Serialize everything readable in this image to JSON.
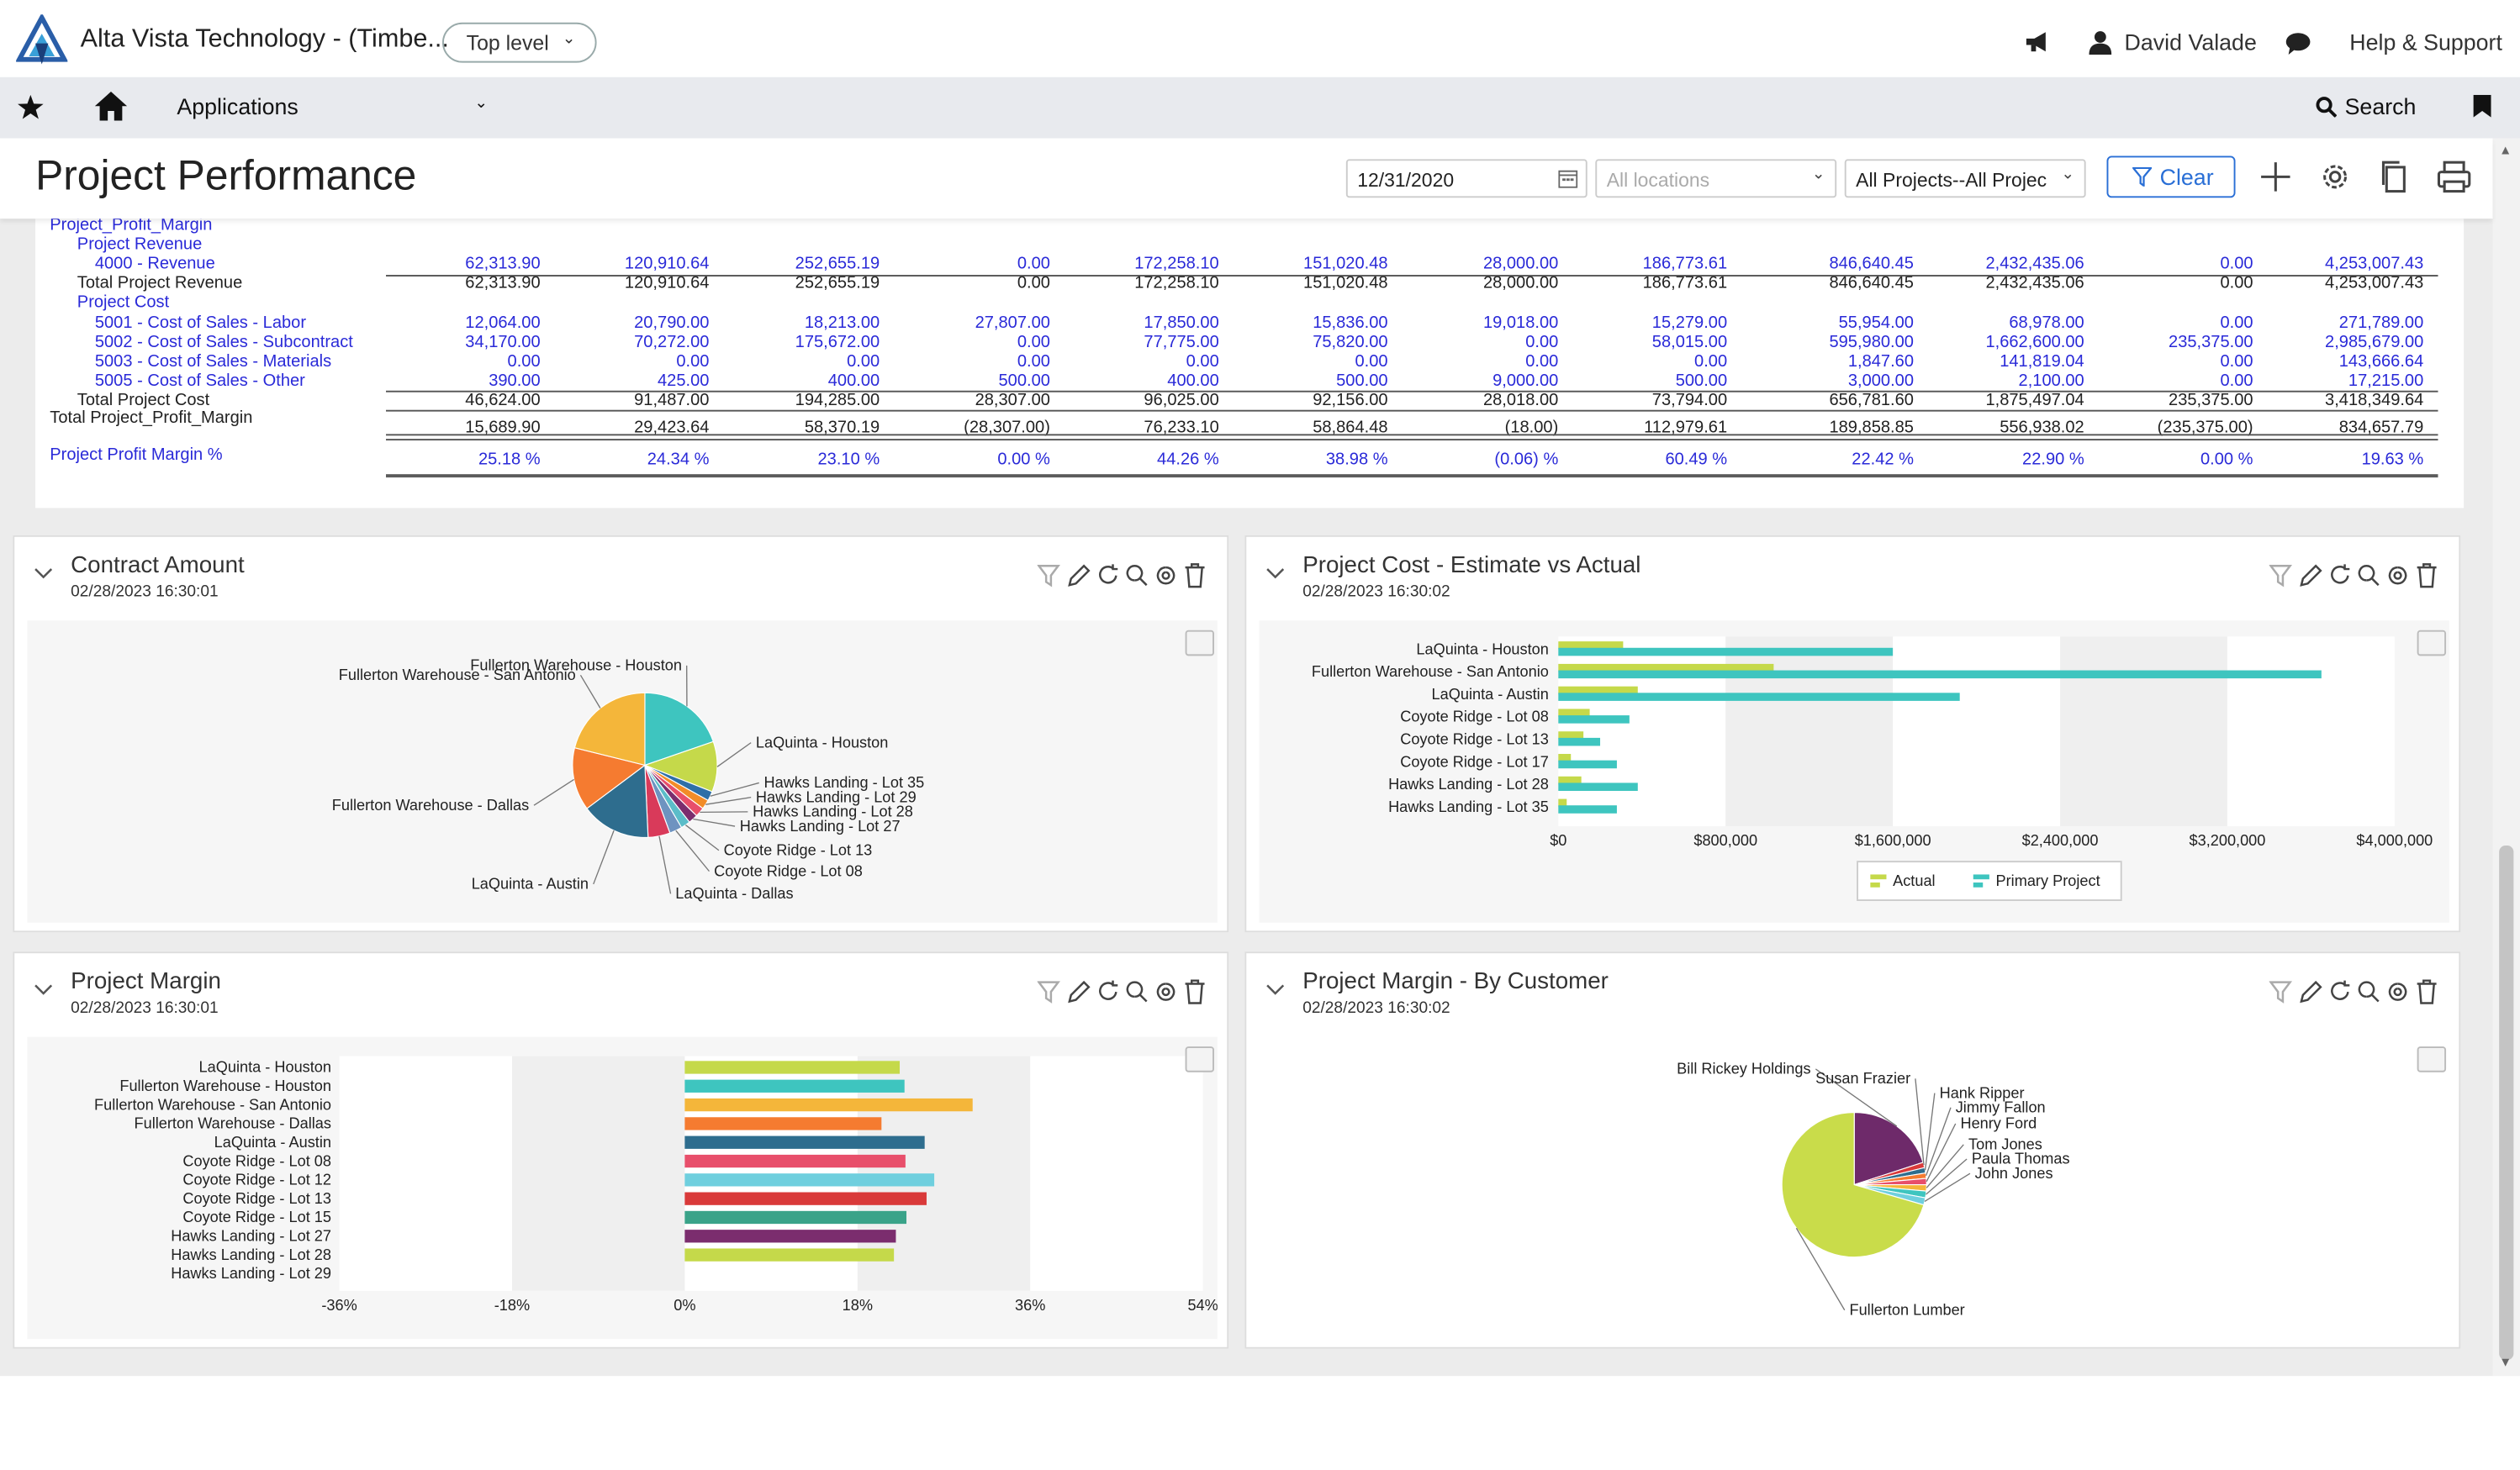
{
  "app": {
    "title": "Alta Vista Technology - (Timbe...",
    "level": "Top level",
    "user": "David Valade",
    "help": "Help & Support"
  },
  "nav": {
    "applications": "Applications",
    "search": "Search"
  },
  "page": {
    "title": "Project Performance",
    "date": "12/31/2020",
    "locations_placeholder": "All locations",
    "projects": "All Projects--All Projec",
    "clear": "Clear"
  },
  "report": {
    "sections": [
      {
        "label": "Project_Profit_Margin",
        "style": "blue",
        "indent": 0
      },
      {
        "label": "Project Revenue",
        "style": "blue",
        "indent": 1
      }
    ],
    "rows": [
      {
        "label": "4000 - Revenue",
        "style": "blue",
        "indent": 2,
        "values": [
          "62,313.90",
          "120,910.64",
          "252,655.19",
          "0.00",
          "172,258.10",
          "151,020.48",
          "28,000.00",
          "186,773.61",
          "846,640.45",
          "2,432,435.06",
          "0.00",
          "4,253,007.43"
        ]
      },
      {
        "label": "Total Project Revenue",
        "style": "black",
        "indent": 1,
        "values": [
          "62,313.90",
          "120,910.64",
          "252,655.19",
          "0.00",
          "172,258.10",
          "151,020.48",
          "28,000.00",
          "186,773.61",
          "846,640.45",
          "2,432,435.06",
          "0.00",
          "4,253,007.43"
        ]
      },
      {
        "label": "Project Cost",
        "style": "blue",
        "indent": 1,
        "values": []
      },
      {
        "label": "5001 - Cost of Sales - Labor",
        "style": "blue",
        "indent": 2,
        "values": [
          "12,064.00",
          "20,790.00",
          "18,213.00",
          "27,807.00",
          "17,850.00",
          "15,836.00",
          "19,018.00",
          "15,279.00",
          "55,954.00",
          "68,978.00",
          "0.00",
          "271,789.00"
        ]
      },
      {
        "label": "5002 - Cost of Sales - Subcontract",
        "style": "blue",
        "indent": 2,
        "values": [
          "34,170.00",
          "70,272.00",
          "175,672.00",
          "0.00",
          "77,775.00",
          "75,820.00",
          "0.00",
          "58,015.00",
          "595,980.00",
          "1,662,600.00",
          "235,375.00",
          "2,985,679.00"
        ]
      },
      {
        "label": "5003 - Cost of Sales - Materials",
        "style": "blue",
        "indent": 2,
        "values": [
          "0.00",
          "0.00",
          "0.00",
          "0.00",
          "0.00",
          "0.00",
          "0.00",
          "0.00",
          "1,847.60",
          "141,819.04",
          "0.00",
          "143,666.64"
        ]
      },
      {
        "label": "5005 - Cost of Sales - Other",
        "style": "blue",
        "indent": 2,
        "values": [
          "390.00",
          "425.00",
          "400.00",
          "500.00",
          "400.00",
          "500.00",
          "9,000.00",
          "500.00",
          "3,000.00",
          "2,100.00",
          "0.00",
          "17,215.00"
        ]
      },
      {
        "label": "Total Project Cost",
        "style": "black",
        "indent": 1,
        "values": [
          "46,624.00",
          "91,487.00",
          "194,285.00",
          "28,307.00",
          "96,025.00",
          "92,156.00",
          "28,018.00",
          "73,794.00",
          "656,781.60",
          "1,875,497.04",
          "235,375.00",
          "3,418,349.64"
        ]
      },
      {
        "label": "Total Project_Profit_Margin",
        "style": "black",
        "indent": 0,
        "values": [
          "15,689.90",
          "29,423.64",
          "58,370.19",
          "(28,307.00)",
          "76,233.10",
          "58,864.48",
          "(18.00)",
          "112,979.61",
          "189,858.85",
          "556,938.02",
          "(235,375.00)",
          "834,657.79"
        ]
      },
      {
        "label": "Project Profit Margin %",
        "style": "blue",
        "indent": 0,
        "values": [
          "25.18 %",
          "24.34 %",
          "23.10 %",
          "0.00 %",
          "44.26 %",
          "38.98 %",
          "(0.06) %",
          "60.49 %",
          "22.42 %",
          "22.90 %",
          "0.00 %",
          "19.63 %"
        ]
      }
    ]
  },
  "panels": {
    "contract": {
      "title": "Contract Amount",
      "date": "02/28/2023 16:30:01"
    },
    "cost": {
      "title": "Project Cost - Estimate vs Actual",
      "date": "02/28/2023 16:30:02"
    },
    "margin": {
      "title": "Project Margin",
      "date": "02/28/2023 16:30:01"
    },
    "customer": {
      "title": "Project Margin - By Customer",
      "date": "02/28/2023 16:30:02"
    }
  },
  "chart_data": [
    {
      "type": "pie",
      "labels": [
        "Fullerton Warehouse - Houston",
        "LaQuinta - Houston",
        "Hawks Landing - Lot 35",
        "Hawks Landing - Lot 29",
        "Hawks Landing - Lot 28",
        "Hawks Landing - Lot 27",
        "Coyote Ridge - Lot 13",
        "Coyote Ridge - Lot 08",
        "LaQuinta - Dallas",
        "LaQuinta - Austin",
        "Fullerton Warehouse - Dallas",
        "Fullerton Warehouse - San Antonio"
      ],
      "values": [
        14,
        8,
        1.5,
        1.5,
        1.5,
        1.5,
        1.5,
        2,
        3.5,
        11,
        10,
        15
      ],
      "colors": [
        "#3ec5bf",
        "#c5d94a",
        "#2e6fa8",
        "#f28c28",
        "#e84f6b",
        "#7b2d6e",
        "#5bbdc9",
        "#6e93c0",
        "#d93a5a",
        "#2e6d8e",
        "#f57b30",
        "#f4b63a"
      ]
    },
    {
      "type": "bar",
      "orientation": "horizontal",
      "categories": [
        "LaQuinta - Houston",
        "Fullerton Warehouse - San Antonio",
        "LaQuinta - Austin",
        "Coyote Ridge - Lot 08",
        "Coyote Ridge - Lot 13",
        "Coyote Ridge - Lot 17",
        "Hawks Landing - Lot 28",
        "Hawks Landing - Lot 35"
      ],
      "series": [
        {
          "name": "Actual",
          "color": "#c5d94a",
          "values": [
            310000,
            1030000,
            380000,
            150000,
            120000,
            60000,
            110000,
            40000
          ]
        },
        {
          "name": "Primary Project",
          "color": "#3ec5bf",
          "values": [
            1600000,
            3650000,
            1920000,
            340000,
            200000,
            280000,
            380000,
            280000
          ]
        }
      ],
      "xticks": [
        "$0",
        "$800,000",
        "$1,600,000",
        "$2,400,000",
        "$3,200,000",
        "$4,000,000"
      ],
      "xlim": [
        0,
        4000000
      ]
    },
    {
      "type": "bar",
      "orientation": "horizontal",
      "categories": [
        "LaQuinta - Houston",
        "Fullerton Warehouse - Houston",
        "Fullerton Warehouse - San Antonio",
        "Fullerton Warehouse - Dallas",
        "LaQuinta - Austin",
        "Coyote Ridge - Lot 08",
        "Coyote Ridge - Lot 12",
        "Coyote Ridge - Lot 13",
        "Coyote Ridge - Lot 15",
        "Hawks Landing - Lot 27",
        "Hawks Landing - Lot 28",
        "Hawks Landing - Lot 29"
      ],
      "values": [
        22.4,
        22.9,
        30.0,
        20.5,
        25.0,
        23.0,
        26.0,
        25.2,
        23.1,
        22.0,
        21.8,
        0
      ],
      "colors": [
        "#c5d94a",
        "#3ec5bf",
        "#f4b63a",
        "#f57b30",
        "#2e6d8e",
        "#e84f6b",
        "#6fcfde",
        "#d93a3a",
        "#3aa389",
        "#7b2d6e",
        "#c5d94a",
        "#c5d94a"
      ],
      "xticks": [
        "-36%",
        "-18%",
        "0%",
        "18%",
        "36%",
        "54%"
      ],
      "xlim": [
        -36,
        54
      ]
    },
    {
      "type": "pie",
      "labels": [
        "Bill Rickey Holdings",
        "Susan Frazier",
        "Hank Ripper",
        "Jimmy Fallon",
        "Henry Ford",
        "Tom Jones",
        "Paula Thomas",
        "John Jones",
        "Fullerton Lumber"
      ],
      "values": [
        20,
        1.2,
        1.2,
        1.2,
        1.4,
        1.4,
        1.5,
        1.6,
        70.5
      ],
      "colors": [
        "#6e2a6a",
        "#d93a3a",
        "#2e6d8e",
        "#f57b30",
        "#e84f6b",
        "#f4b63a",
        "#3ec5bf",
        "#6fcfde",
        "#c9dc4a"
      ]
    }
  ]
}
